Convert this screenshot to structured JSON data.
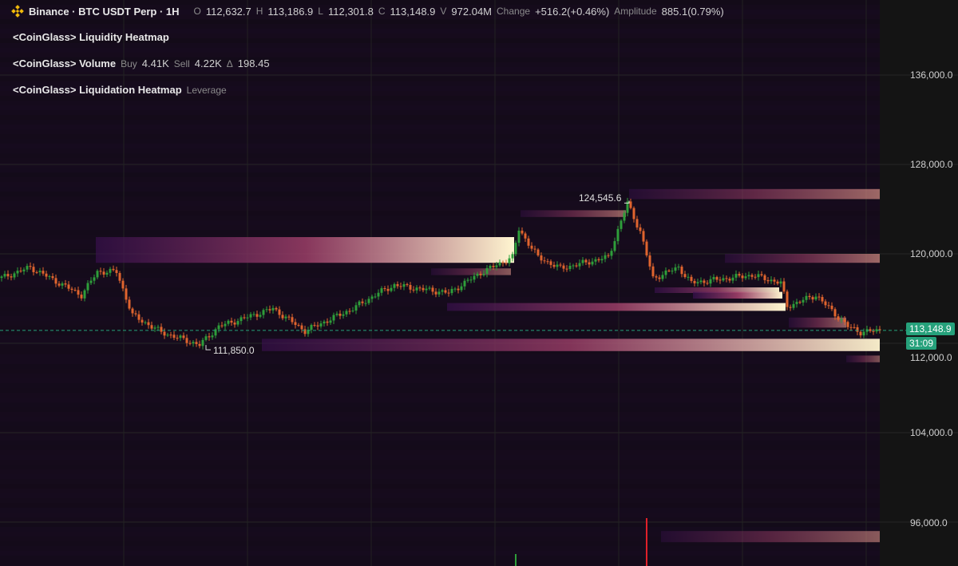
{
  "header": {
    "symbol": "Binance · BTC USDT Perp · 1H",
    "o_label": "O",
    "o": "112,632.7",
    "h_label": "H",
    "h": "113,186.9",
    "l_label": "L",
    "l": "112,301.8",
    "c_label": "C",
    "c": "113,148.9",
    "v_label": "V",
    "v": "972.04M",
    "change_label": "Change",
    "change": "+516.2(+0.46%)",
    "amplitude_label": "Amplitude",
    "amplitude": "885.1(0.79%)"
  },
  "indicators": [
    {
      "name": "<CoinGlass> Liquidity Heatmap"
    },
    {
      "name": "<CoinGlass> Volume",
      "buy_label": "Buy",
      "buy": "4.41K",
      "sell_label": "Sell",
      "sell": "4.22K",
      "delta_label": "Δ",
      "delta": "198.45"
    },
    {
      "name": "<CoinGlass> Liquidation Heatmap",
      "extra": "Leverage"
    }
  ],
  "price_axis": {
    "ticks": [
      "136,000.0",
      "128,000.0",
      "120,000.0",
      "112,000.0",
      "104,000.0",
      "96,000.0"
    ],
    "current_price": "113,148.9",
    "countdown": "31:09"
  },
  "annotations": {
    "high": "124,545.6",
    "low": "111,850.0"
  },
  "colors": {
    "up": "#26a69a",
    "down": "#ef5350",
    "candle_up": "#2e9e3a",
    "candle_down": "#e0642e",
    "price_line": "#26a17b",
    "heat_low": "#3a1050",
    "heat_high": "#fff5d0"
  },
  "chart_data": {
    "type": "candlestick",
    "ylim": [
      92500,
      142000
    ],
    "yticks": [
      136000,
      128000,
      120000,
      112000,
      104000,
      96000
    ],
    "grid": true,
    "price_path": [
      [
        0,
        117850
      ],
      [
        9,
        118800
      ],
      [
        25,
        116300
      ],
      [
        30,
        118400
      ],
      [
        36,
        118400
      ],
      [
        41,
        114500
      ],
      [
        50,
        113000
      ],
      [
        62,
        111850
      ],
      [
        68,
        113500
      ],
      [
        85,
        115100
      ],
      [
        95,
        113100
      ],
      [
        110,
        115100
      ],
      [
        118,
        116500
      ],
      [
        123,
        117200
      ],
      [
        140,
        116500
      ],
      [
        150,
        118300
      ],
      [
        160,
        119700
      ],
      [
        162,
        122200
      ],
      [
        168,
        119700
      ],
      [
        175,
        118700
      ],
      [
        190,
        119700
      ],
      [
        196,
        124545
      ],
      [
        200,
        122000
      ],
      [
        204,
        117800
      ],
      [
        212,
        118800
      ],
      [
        216,
        117400
      ],
      [
        235,
        118100
      ],
      [
        244,
        117400
      ],
      [
        246,
        115300
      ],
      [
        255,
        116300
      ],
      [
        265,
        113500
      ],
      [
        269,
        113000
      ],
      [
        275,
        113149
      ]
    ],
    "heatmap_bands": [
      {
        "price_hi": 125800,
        "price_lo": 124900,
        "from": 197,
        "to": 276,
        "intensity": 0.55
      },
      {
        "price_hi": 123900,
        "price_lo": 123300,
        "from": 163,
        "to": 196,
        "intensity": 0.5
      },
      {
        "price_hi": 121500,
        "price_lo": 119200,
        "from": 30,
        "to": 161,
        "intensity": 0.9
      },
      {
        "price_hi": 120000,
        "price_lo": 119200,
        "from": 227,
        "to": 276,
        "intensity": 0.55
      },
      {
        "price_hi": 118700,
        "price_lo": 118100,
        "from": 135,
        "to": 160,
        "intensity": 0.45
      },
      {
        "price_hi": 117000,
        "price_lo": 116500,
        "from": 205,
        "to": 244,
        "intensity": 0.85
      },
      {
        "price_hi": 116600,
        "price_lo": 116000,
        "from": 217,
        "to": 245,
        "intensity": 1.0
      },
      {
        "price_hi": 115600,
        "price_lo": 114900,
        "from": 140,
        "to": 246,
        "intensity": 0.9
      },
      {
        "price_hi": 114300,
        "price_lo": 113400,
        "from": 247,
        "to": 265,
        "intensity": 0.5
      },
      {
        "price_hi": 112400,
        "price_lo": 111300,
        "from": 82,
        "to": 276,
        "intensity": 0.85
      },
      {
        "price_hi": 110900,
        "price_lo": 110300,
        "from": 265,
        "to": 276,
        "intensity": 0.4
      },
      {
        "price_hi": 95200,
        "price_lo": 94200,
        "from": 207,
        "to": 276,
        "intensity": 0.45
      }
    ],
    "volume_spikes": [
      {
        "bar": 161,
        "side": "buy",
        "relative": 0.25
      },
      {
        "bar": 202,
        "side": "sell",
        "relative": 1.0
      }
    ]
  }
}
